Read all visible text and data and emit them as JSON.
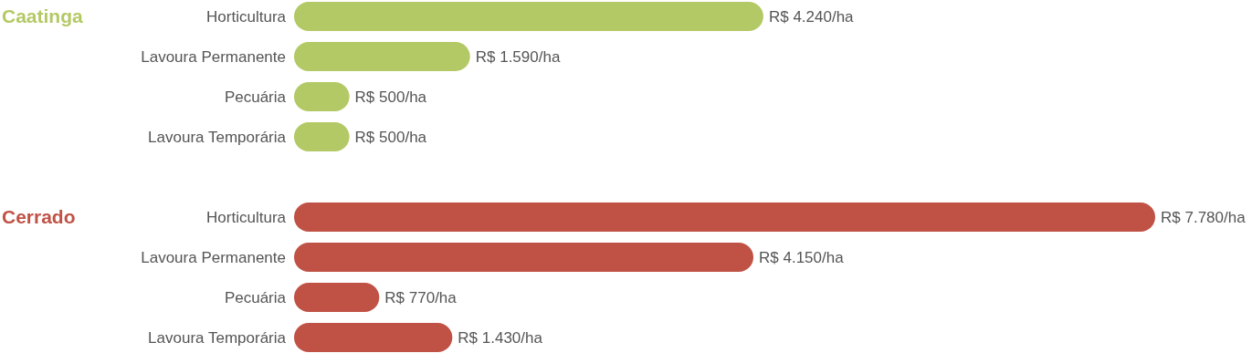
{
  "chart_data": [
    {
      "type": "bar",
      "orientation": "horizontal",
      "title": "Caatinga",
      "categories": [
        "Horticultura",
        "Lavoura Permanente",
        "Pecuária",
        "Lavoura Temporária"
      ],
      "series": [
        {
          "color": "#b3c965",
          "values": [
            4240,
            1590,
            500,
            500
          ],
          "value_labels": [
            "R$ 4.240/ha",
            "R$ 1.590/ha",
            "R$ 500/ha",
            "R$ 500/ha"
          ]
        }
      ]
    },
    {
      "type": "bar",
      "orientation": "horizontal",
      "title": "Cerrado",
      "categories": [
        "Horticultura",
        "Lavoura Permanente",
        "Pecuária",
        "Lavoura Temporária"
      ],
      "series": [
        {
          "color": "#c05245",
          "values": [
            7780,
            4150,
            770,
            1430
          ],
          "value_labels": [
            "R$ 7.780/ha",
            "R$ 4.150/ha",
            "R$ 770/ha",
            "R$ 1.430/ha"
          ]
        }
      ]
    }
  ]
}
